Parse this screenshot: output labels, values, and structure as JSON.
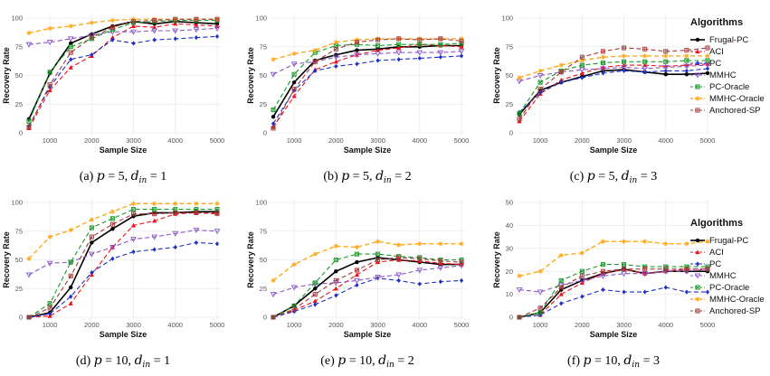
{
  "legend": {
    "title": "Algorithms",
    "items": [
      {
        "name": "Frugal-PC",
        "color": "#000000",
        "dash": "",
        "marker": "circle",
        "width": 1.6
      },
      {
        "name": "ACI",
        "color": "#e8141c",
        "dash": "5,3",
        "marker": "triangle",
        "width": 1.1
      },
      {
        "name": "PC",
        "color": "#1f2fc4",
        "dash": "5,3",
        "marker": "diamond",
        "width": 1.1
      },
      {
        "name": "MMHC",
        "color": "#8a56c8",
        "dash": "5,3",
        "marker": "tri-down",
        "width": 1.1
      },
      {
        "name": "PC-Oracle",
        "color": "#1a9a2a",
        "dash": "5,3",
        "marker": "square-x",
        "width": 1.1
      },
      {
        "name": "MMHC-Oracle",
        "color": "#ffa91c",
        "dash": "5,3",
        "marker": "star",
        "width": 1.4
      },
      {
        "name": "Anchored-SP",
        "color": "#a33a3a",
        "dash": "5,3",
        "marker": "square-plus",
        "width": 1.1
      }
    ]
  },
  "chart_data": [
    {
      "type": "line",
      "panel": "a",
      "caption": {
        "label": "(a)",
        "p": "5",
        "d": "1"
      },
      "xlabel": "Sample Size",
      "ylabel": "Recovery Rate",
      "xlim": [
        500,
        5000
      ],
      "ylim": [
        0,
        100
      ],
      "xticks": [
        1000,
        2000,
        3000,
        4000,
        5000
      ],
      "yticks": [
        0,
        25,
        50,
        75,
        100
      ],
      "x": [
        500,
        1000,
        1500,
        2000,
        2500,
        3000,
        3500,
        4000,
        4500,
        5000
      ],
      "series": [
        {
          "name": "Frugal-PC",
          "values": [
            12,
            52,
            78,
            86,
            93,
            97,
            95,
            97,
            96,
            95
          ]
        },
        {
          "name": "ACI",
          "values": [
            4,
            37,
            57,
            67,
            83,
            93,
            92,
            95,
            94,
            93
          ]
        },
        {
          "name": "PC",
          "values": [
            6,
            40,
            64,
            68,
            81,
            78,
            81,
            82,
            83,
            84
          ]
        },
        {
          "name": "MMHC",
          "values": [
            77,
            79,
            82,
            85,
            88,
            88,
            89,
            89,
            90,
            91
          ]
        },
        {
          "name": "PC-Oracle",
          "values": [
            10,
            53,
            75,
            82,
            90,
            96,
            97,
            98,
            98,
            98
          ]
        },
        {
          "name": "MMHC-Oracle",
          "values": [
            87,
            91,
            93,
            96,
            98,
            99,
            99,
            99,
            99,
            99
          ]
        },
        {
          "name": "Anchored-SP",
          "values": [
            5,
            42,
            70,
            83,
            92,
            97,
            98,
            99,
            99,
            99
          ]
        }
      ]
    },
    {
      "type": "line",
      "panel": "b",
      "caption": {
        "label": "(b)",
        "p": "5",
        "d": "2"
      },
      "xlabel": "Sample Size",
      "ylabel": "Recovery Rate",
      "xlim": [
        500,
        5000
      ],
      "ylim": [
        0,
        100
      ],
      "xticks": [
        1000,
        2000,
        3000,
        4000,
        5000
      ],
      "yticks": [
        0,
        25,
        50,
        75,
        100
      ],
      "x": [
        500,
        1000,
        1500,
        2000,
        2500,
        3000,
        3500,
        4000,
        4500,
        5000
      ],
      "series": [
        {
          "name": "Frugal-PC",
          "values": [
            14,
            44,
            63,
            68,
            72,
            73,
            75,
            75,
            76,
            76
          ]
        },
        {
          "name": "ACI",
          "values": [
            5,
            32,
            55,
            62,
            68,
            72,
            74,
            77,
            76,
            75
          ]
        },
        {
          "name": "PC",
          "values": [
            8,
            37,
            54,
            58,
            60,
            63,
            64,
            65,
            66,
            67
          ]
        },
        {
          "name": "MMHC",
          "values": [
            51,
            60,
            62,
            66,
            68,
            69,
            70,
            70,
            70,
            71
          ]
        },
        {
          "name": "PC-Oracle",
          "values": [
            20,
            51,
            70,
            76,
            77,
            76,
            77,
            77,
            77,
            78
          ]
        },
        {
          "name": "MMHC-Oracle",
          "values": [
            64,
            69,
            72,
            79,
            81,
            82,
            82,
            82,
            82,
            82
          ]
        },
        {
          "name": "Anchored-SP",
          "values": [
            4,
            38,
            62,
            73,
            79,
            81,
            82,
            81,
            82,
            80
          ]
        }
      ]
    },
    {
      "type": "line",
      "panel": "c",
      "caption": {
        "label": "(c)",
        "p": "5",
        "d": "3"
      },
      "xlabel": "Sample Size",
      "ylabel": "Recovery Rate",
      "xlim": [
        500,
        5000
      ],
      "ylim": [
        0,
        100
      ],
      "xticks": [
        1000,
        2000,
        3000,
        4000,
        5000
      ],
      "yticks": [
        0,
        25,
        50,
        75,
        100
      ],
      "x": [
        500,
        1000,
        1500,
        2000,
        2500,
        3000,
        3500,
        4000,
        4500,
        5000
      ],
      "series": [
        {
          "name": "Frugal-PC",
          "values": [
            16,
            37,
            44,
            49,
            54,
            55,
            53,
            51,
            51,
            52
          ]
        },
        {
          "name": "ACI",
          "values": [
            10,
            34,
            46,
            52,
            57,
            59,
            59,
            58,
            59,
            60
          ]
        },
        {
          "name": "PC",
          "values": [
            18,
            35,
            44,
            48,
            52,
            54,
            53,
            54,
            54,
            56
          ]
        },
        {
          "name": "MMHC",
          "values": [
            45,
            50,
            53,
            55,
            56,
            57,
            56,
            57,
            58,
            59
          ]
        },
        {
          "name": "PC-Oracle",
          "values": [
            17,
            44,
            54,
            59,
            61,
            62,
            62,
            62,
            63,
            63
          ]
        },
        {
          "name": "MMHC-Oracle",
          "values": [
            48,
            54,
            59,
            63,
            66,
            67,
            67,
            67,
            67,
            67
          ]
        },
        {
          "name": "Anchored-SP",
          "values": [
            12,
            38,
            53,
            66,
            71,
            74,
            73,
            71,
            72,
            74
          ]
        }
      ]
    },
    {
      "type": "line",
      "panel": "d",
      "caption": {
        "label": "(d)",
        "p": "10",
        "d": "1"
      },
      "xlabel": "Sample Size",
      "ylabel": "Recovery Rate",
      "xlim": [
        500,
        5000
      ],
      "ylim": [
        0,
        100
      ],
      "xticks": [
        1000,
        2000,
        3000,
        4000,
        5000
      ],
      "yticks": [
        0,
        25,
        50,
        75,
        100
      ],
      "x": [
        500,
        1000,
        1500,
        2000,
        2500,
        3000,
        3500,
        4000,
        4500,
        5000
      ],
      "series": [
        {
          "name": "Frugal-PC",
          "values": [
            0,
            4,
            26,
            65,
            77,
            88,
            91,
            91,
            92,
            92
          ]
        },
        {
          "name": "ACI",
          "values": [
            0,
            1,
            12,
            37,
            61,
            80,
            84,
            90,
            91,
            90
          ]
        },
        {
          "name": "PC",
          "values": [
            0,
            3,
            18,
            39,
            51,
            57,
            59,
            61,
            65,
            64
          ]
        },
        {
          "name": "MMHC",
          "values": [
            37,
            47,
            48,
            55,
            61,
            68,
            70,
            73,
            76,
            75
          ]
        },
        {
          "name": "PC-Oracle",
          "values": [
            0,
            12,
            48,
            78,
            86,
            94,
            94,
            94,
            94,
            94
          ]
        },
        {
          "name": "MMHC-Oracle",
          "values": [
            51,
            70,
            76,
            85,
            92,
            99,
            99,
            99,
            99,
            99
          ]
        },
        {
          "name": "Anchored-SP",
          "values": [
            0,
            8,
            36,
            70,
            81,
            90,
            90,
            91,
            91,
            91
          ]
        }
      ]
    },
    {
      "type": "line",
      "panel": "e",
      "caption": {
        "label": "(e)",
        "p": "10",
        "d": "2"
      },
      "xlabel": "Sample Size",
      "ylabel": "Recovery Rate",
      "xlim": [
        500,
        5000
      ],
      "ylim": [
        0,
        100
      ],
      "xticks": [
        1000,
        2000,
        3000,
        4000,
        5000
      ],
      "yticks": [
        0,
        25,
        50,
        75,
        100
      ],
      "x": [
        500,
        1000,
        1500,
        2000,
        2500,
        3000,
        3500,
        4000,
        4500,
        5000
      ],
      "series": [
        {
          "name": "Frugal-PC",
          "values": [
            0,
            10,
            25,
            40,
            48,
            52,
            50,
            48,
            46,
            46
          ]
        },
        {
          "name": "ACI",
          "values": [
            0,
            6,
            14,
            25,
            37,
            48,
            50,
            49,
            47,
            46
          ]
        },
        {
          "name": "PC",
          "values": [
            0,
            5,
            11,
            19,
            28,
            34,
            32,
            29,
            31,
            32
          ]
        },
        {
          "name": "MMHC",
          "values": [
            20,
            26,
            29,
            30,
            32,
            35,
            37,
            41,
            43,
            45
          ]
        },
        {
          "name": "PC-Oracle",
          "values": [
            0,
            10,
            30,
            50,
            55,
            55,
            53,
            52,
            50,
            50
          ]
        },
        {
          "name": "MMHC-Oracle",
          "values": [
            32,
            46,
            55,
            62,
            61,
            66,
            63,
            64,
            64,
            64
          ]
        },
        {
          "name": "Anchored-SP",
          "values": [
            0,
            7,
            20,
            32,
            41,
            50,
            52,
            51,
            49,
            48
          ]
        }
      ]
    },
    {
      "type": "line",
      "panel": "f",
      "caption": {
        "label": "(f)",
        "p": "10",
        "d": "3"
      },
      "xlabel": "Sample Size",
      "ylabel": "Recovery Rate",
      "xlim": [
        500,
        5000
      ],
      "ylim": [
        0,
        50
      ],
      "xticks": [
        1000,
        2000,
        3000,
        4000,
        5000
      ],
      "yticks": [
        0,
        10,
        20,
        30,
        40,
        50
      ],
      "x": [
        500,
        1000,
        1500,
        2000,
        2500,
        3000,
        3500,
        4000,
        4500,
        5000
      ],
      "series": [
        {
          "name": "Frugal-PC",
          "values": [
            0,
            2,
            12,
            16,
            19,
            21,
            19,
            20,
            20,
            20
          ]
        },
        {
          "name": "ACI",
          "values": [
            0,
            1,
            10,
            15,
            19,
            21,
            19,
            20,
            21,
            21
          ]
        },
        {
          "name": "PC",
          "values": [
            0,
            1,
            6,
            9,
            12,
            11,
            11,
            13,
            11,
            11
          ]
        },
        {
          "name": "MMHC",
          "values": [
            12,
            11,
            14,
            16,
            18,
            19,
            19,
            20,
            20,
            21
          ]
        },
        {
          "name": "PC-Oracle",
          "values": [
            0,
            2,
            16,
            20,
            23,
            23,
            22,
            22,
            22,
            22
          ]
        },
        {
          "name": "MMHC-Oracle",
          "values": [
            18,
            20,
            27,
            28,
            33,
            33,
            33,
            32,
            32,
            33
          ]
        },
        {
          "name": "Anchored-SP",
          "values": [
            0,
            4,
            13,
            18,
            20,
            21,
            21,
            21,
            21,
            21
          ]
        }
      ]
    }
  ]
}
